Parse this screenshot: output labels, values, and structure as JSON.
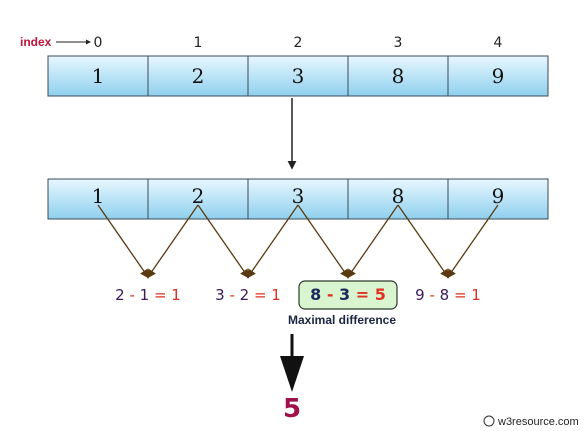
{
  "index_label": "index",
  "indices": [
    "0",
    "1",
    "2",
    "3",
    "4"
  ],
  "array_top": [
    "1",
    "2",
    "3",
    "8",
    "9"
  ],
  "array_bottom": [
    "1",
    "2",
    "3",
    "8",
    "9"
  ],
  "differences": [
    {
      "a": "2",
      "op": "-",
      "b": "1",
      "eq": "=",
      "result": "1",
      "highlight": false
    },
    {
      "a": "3",
      "op": "-",
      "b": "2",
      "eq": "=",
      "result": "1",
      "highlight": false
    },
    {
      "a": "8",
      "op": "-",
      "b": "3",
      "eq": "=",
      "result": "5",
      "highlight": true
    },
    {
      "a": "9",
      "op": "-",
      "b": "8",
      "eq": "=",
      "result": "1",
      "highlight": false
    }
  ],
  "caption": "Maximal difference",
  "final_result": "5",
  "credit": "© w3resource.com",
  "colors": {
    "index_label": "#c0143c",
    "cell_top": "#e8f7ff",
    "cell_bottom": "#8fd0ee",
    "cell_border": "#3a4a5a",
    "arrow_brown": "#5a3a10",
    "operand": "#3a1a5a",
    "operator_red": "#e03020",
    "highlight_bg": "#d8f5d0",
    "highlight_border": "#2a3a2a",
    "highlight_text": "#1a2a5a",
    "result": "#a0104a"
  }
}
